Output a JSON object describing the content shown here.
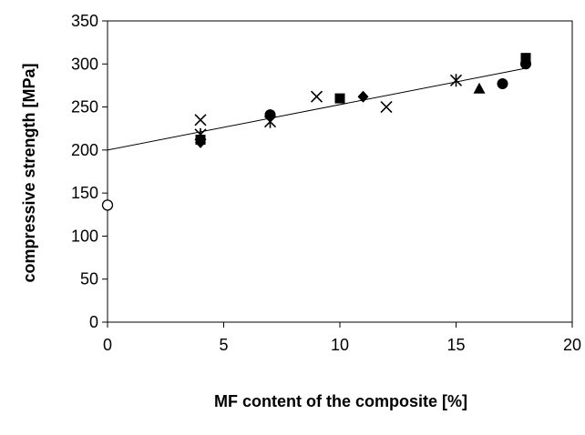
{
  "chart_data": {
    "type": "scatter",
    "xlabel": "MF content of the composite [%]",
    "ylabel": "compressive strength [MPa]",
    "xlim": [
      0,
      20
    ],
    "ylim": [
      0,
      350
    ],
    "x_ticks": [
      "0",
      "5",
      "10",
      "15",
      "20"
    ],
    "y_ticks": [
      "0",
      "50",
      "100",
      "150",
      "200",
      "250",
      "300",
      "350"
    ],
    "grid": false,
    "series": [
      {
        "marker": "open-circle",
        "points": [
          [
            0,
            136
          ]
        ]
      },
      {
        "marker": "filled-diamond",
        "points": [
          [
            4,
            209
          ],
          [
            11,
            262
          ]
        ]
      },
      {
        "marker": "filled-square",
        "points": [
          [
            4,
            212
          ],
          [
            10,
            260
          ],
          [
            18,
            307
          ]
        ]
      },
      {
        "marker": "cross",
        "points": [
          [
            4,
            235
          ],
          [
            9,
            262
          ],
          [
            12,
            250
          ]
        ]
      },
      {
        "marker": "asterisk",
        "points": [
          [
            4,
            218
          ],
          [
            7,
            233
          ],
          [
            15,
            281
          ]
        ]
      },
      {
        "marker": "filled-circle",
        "points": [
          [
            7,
            241
          ],
          [
            17,
            277
          ],
          [
            18,
            300
          ]
        ]
      },
      {
        "marker": "filled-triangle",
        "points": [
          [
            16,
            271
          ]
        ]
      }
    ],
    "trendline": {
      "type": "linear",
      "x": [
        0,
        18
      ],
      "y": [
        200,
        295
      ]
    }
  }
}
